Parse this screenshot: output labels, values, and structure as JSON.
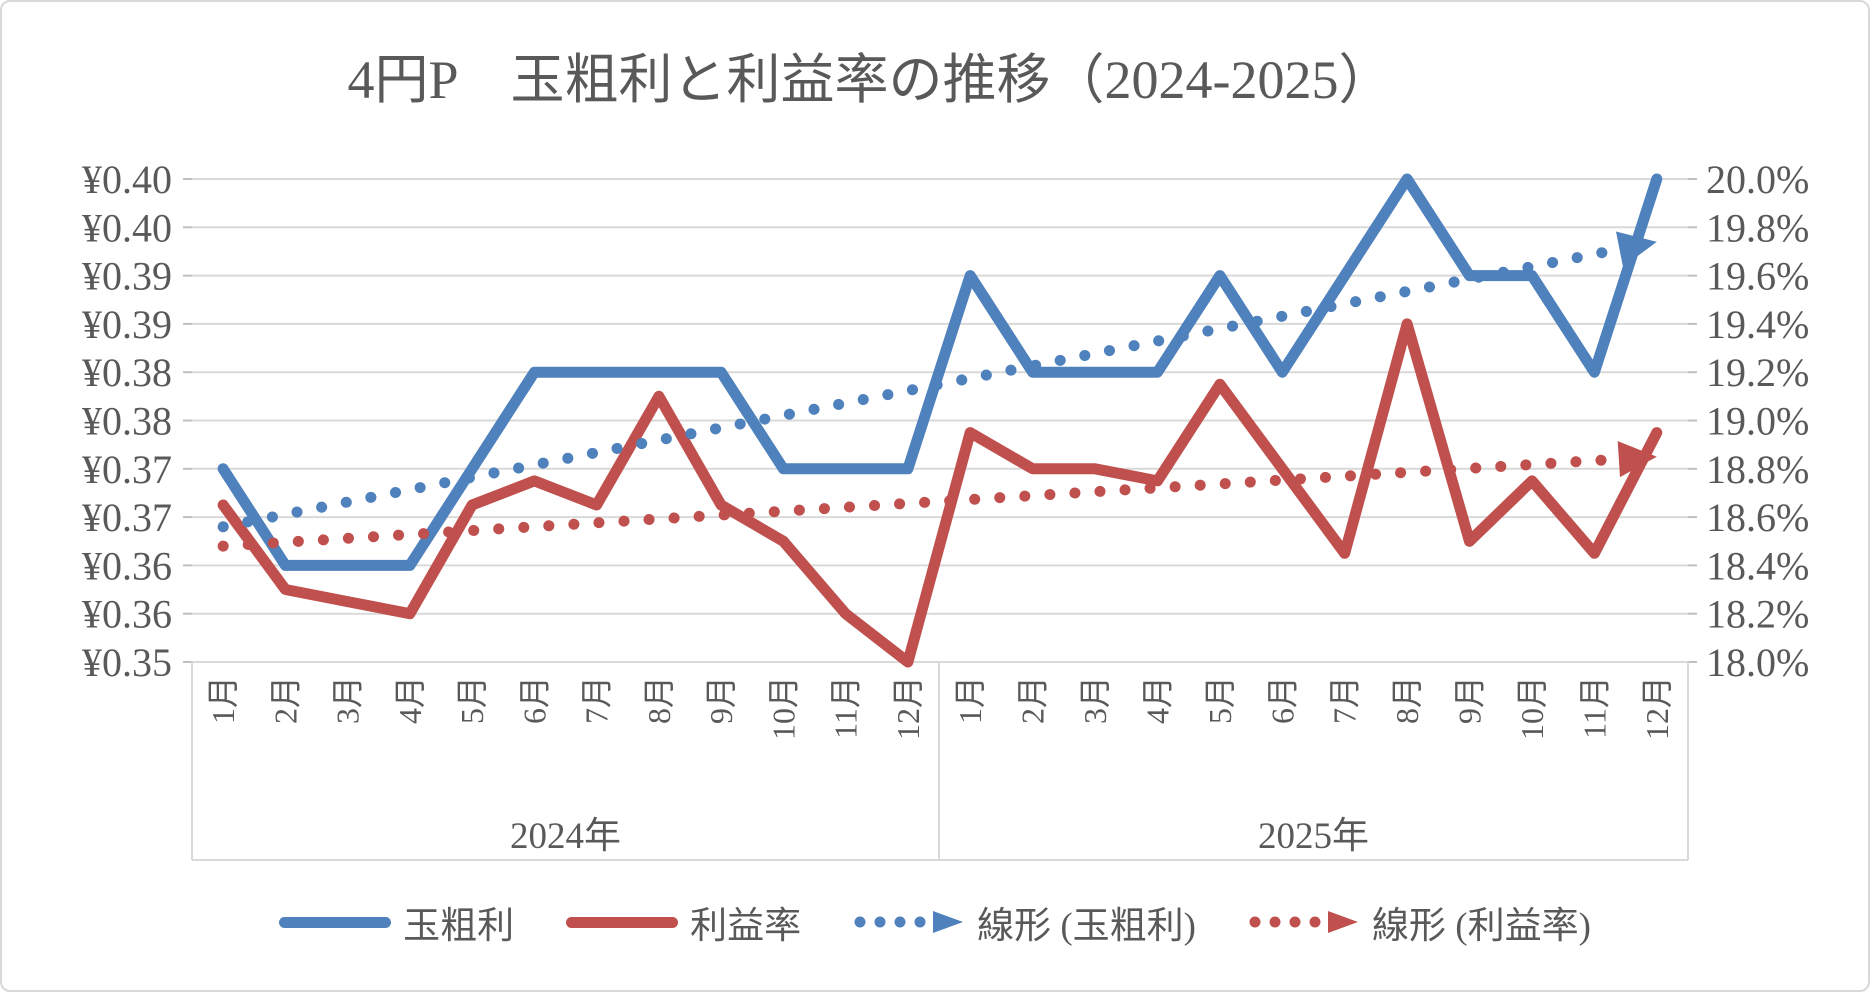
{
  "colors": {
    "blue": "#4F81BD",
    "red": "#C0504D",
    "grid": "#D9D9D9",
    "axis": "#BFBFBF",
    "text": "#595959",
    "border": "#D9D9D9"
  },
  "chart_data": {
    "type": "line",
    "title": "4円P　玉粗利と利益率の推移（2024-2025）",
    "grid": true,
    "legend_position": "bottom",
    "x_axis": {
      "groups": [
        {
          "label": "2024年",
          "months": [
            "1月",
            "2月",
            "3月",
            "4月",
            "5月",
            "6月",
            "7月",
            "8月",
            "9月",
            "10月",
            "11月",
            "12月"
          ]
        },
        {
          "label": "2025年",
          "months": [
            "1月",
            "2月",
            "3月",
            "4月",
            "5月",
            "6月",
            "7月",
            "8月",
            "9月",
            "10月",
            "11月",
            "12月"
          ]
        }
      ]
    },
    "left_axis": {
      "min": 0.35,
      "max": 0.4,
      "step": 0.005,
      "tick_labels": [
        "¥0.40",
        "¥0.40",
        "¥0.39",
        "¥0.39",
        "¥0.38",
        "¥0.38",
        "¥0.37",
        "¥0.37",
        "¥0.36",
        "¥0.36",
        "¥0.35"
      ]
    },
    "right_axis": {
      "min": 18.0,
      "max": 20.0,
      "step": 0.2,
      "tick_labels": [
        "20.0%",
        "19.8%",
        "19.6%",
        "19.4%",
        "19.2%",
        "19.0%",
        "18.8%",
        "18.6%",
        "18.4%",
        "18.2%",
        "18.0%"
      ]
    },
    "series": [
      {
        "id": "gross-profit",
        "name": "玉粗利",
        "type": "line",
        "axis": "left",
        "color": "#4F81BD",
        "values": [
          0.37,
          0.36,
          0.36,
          0.36,
          0.37,
          0.38,
          0.38,
          0.38,
          0.38,
          0.37,
          0.37,
          0.37,
          0.39,
          0.38,
          0.38,
          0.38,
          0.39,
          0.38,
          0.39,
          0.4,
          0.39,
          0.39,
          0.38,
          0.4
        ]
      },
      {
        "id": "profit-rate",
        "name": "利益率",
        "type": "line",
        "axis": "right",
        "color": "#C0504D",
        "values": [
          18.65,
          18.3,
          18.25,
          18.2,
          18.65,
          18.75,
          18.65,
          19.1,
          18.65,
          18.5,
          18.2,
          18.0,
          18.95,
          18.8,
          18.8,
          18.75,
          19.15,
          18.8,
          18.45,
          19.4,
          18.5,
          18.75,
          18.45,
          18.95
        ]
      },
      {
        "id": "trend-gross-profit",
        "name": "線形 (玉粗利)",
        "type": "linear-trend",
        "axis": "left",
        "color": "#4F81BD",
        "start": 0.364,
        "end": 0.3935
      },
      {
        "id": "trend-profit-rate",
        "name": "線形 (利益率)",
        "type": "linear-trend",
        "axis": "right",
        "color": "#C0504D",
        "start": 18.48,
        "end": 18.85
      }
    ],
    "legend": [
      "玉粗利",
      "利益率",
      "線形 (玉粗利)",
      "線形 (利益率)"
    ]
  }
}
